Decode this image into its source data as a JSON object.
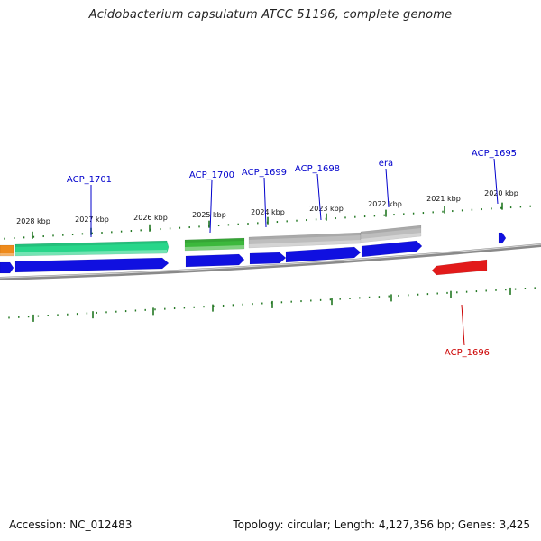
{
  "title": "Acidobacterium capsulatum ATCC 51196, complete genome",
  "accession": "Accession: NC_012483",
  "summary": "Topology: circular; Length: 4,127,356 bp; Genes: 3,425",
  "colors": {
    "forward_label": "#0000cc",
    "reverse_label": "#cc0000",
    "tick": "#227722",
    "backbone": "#8a8a8a"
  },
  "scale_labels": [
    "2028 kbp",
    "2027 kbp",
    "2026 kbp",
    "2025 kbp",
    "2024 kbp",
    "2023 kbp",
    "2022 kbp",
    "2021 kbp",
    "2020 kbp"
  ],
  "genes": [
    {
      "id": "gene-orange",
      "track": "outer",
      "color": "#ee8a1c",
      "label": ""
    },
    {
      "id": "gene-teal",
      "track": "outer",
      "color": "#28d68a",
      "label": ""
    },
    {
      "id": "gene-green",
      "track": "outer",
      "color": "#3cb83c",
      "label": ""
    },
    {
      "id": "gene-gray-1",
      "track": "outer",
      "color": "#bdbdbd",
      "label": ""
    },
    {
      "id": "gene-gray-2",
      "track": "outer",
      "color": "#bdbdbd",
      "label": ""
    },
    {
      "id": "gene-blue-1",
      "track": "middle",
      "color": "#1010e0",
      "label": ""
    },
    {
      "id": "gene-blue-2",
      "track": "middle",
      "color": "#1010e0",
      "label": ""
    },
    {
      "id": "gene-blue-3",
      "track": "middle",
      "color": "#1010e0",
      "label": ""
    },
    {
      "id": "gene-blue-4",
      "track": "middle",
      "color": "#1010e0",
      "label": ""
    },
    {
      "id": "gene-blue-5",
      "track": "middle",
      "color": "#1010e0",
      "label": ""
    },
    {
      "id": "gene-blue-6",
      "track": "middle",
      "color": "#1010e0",
      "label": ""
    },
    {
      "id": "gene-blue-7",
      "track": "middle",
      "color": "#1010e0",
      "label": ""
    },
    {
      "id": "gene-red",
      "track": "inner",
      "color": "#e21a1a",
      "label": ""
    }
  ],
  "labels": [
    {
      "text": "ACP_1701",
      "strand": "forward"
    },
    {
      "text": "ACP_1700",
      "strand": "forward"
    },
    {
      "text": "ACP_1699",
      "strand": "forward"
    },
    {
      "text": "ACP_1698",
      "strand": "forward"
    },
    {
      "text": "era",
      "strand": "forward"
    },
    {
      "text": "ACP_1695",
      "strand": "forward"
    },
    {
      "text": "ACP_1696",
      "strand": "reverse"
    }
  ]
}
